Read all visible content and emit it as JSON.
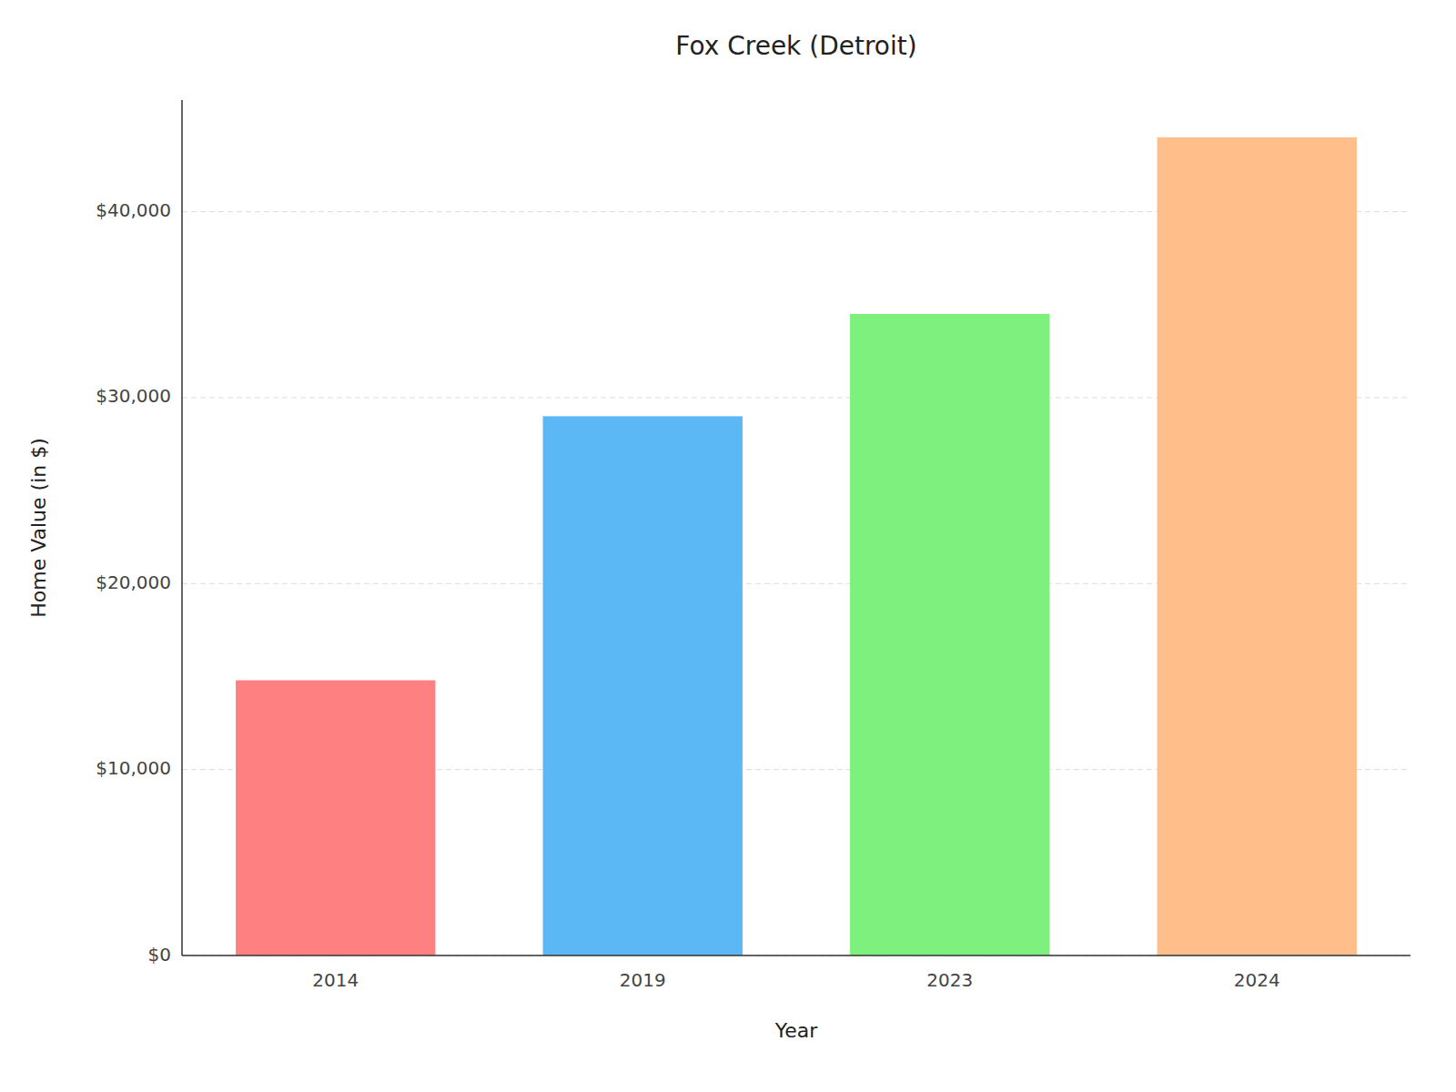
{
  "chart_data": {
    "type": "bar",
    "title": "Fox Creek (Detroit)",
    "xlabel": "Year",
    "ylabel": "Home Value (in $)",
    "categories": [
      "2014",
      "2019",
      "2023",
      "2024"
    ],
    "values": [
      14800,
      29000,
      34500,
      44000
    ],
    "colors": [
      "#FF8080",
      "#5BB8F5",
      "#7EF07E",
      "#FFBE8A"
    ],
    "ylim": [
      0,
      46000
    ],
    "yticks": [
      {
        "value": 0,
        "label": "$0"
      },
      {
        "value": 10000,
        "label": "$10,000"
      },
      {
        "value": 20000,
        "label": "$20,000"
      },
      {
        "value": 30000,
        "label": "$30,000"
      },
      {
        "value": 40000,
        "label": "$40,000"
      }
    ],
    "grid": true
  }
}
